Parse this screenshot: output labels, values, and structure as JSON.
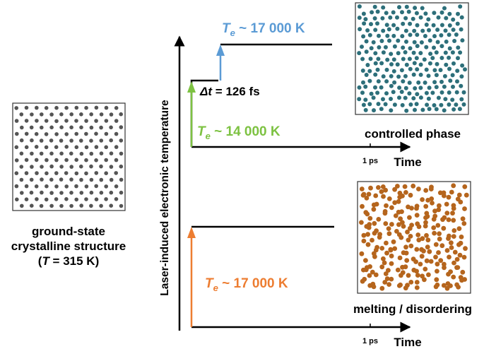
{
  "left_panel": {
    "caption_line1": "ground-state",
    "caption_line2": "crystalline structure",
    "temperature": {
      "open": "(",
      "symbol": "T",
      "rest": " = 315 K)"
    }
  },
  "y_axis": {
    "label": "Laser-induced electronic temperature"
  },
  "top_panel": {
    "pulse1": {
      "symbol": "T",
      "subscript": "e",
      "value": " ~ 14 000 K"
    },
    "pulse2": {
      "symbol": "T",
      "subscript": "e",
      "value": " ~ 17 000 K"
    },
    "delay": {
      "symbol": "Δt",
      "value": " = 126 fs"
    },
    "tick_label": "1 ps",
    "axis_label": "Time",
    "caption": "controlled phase"
  },
  "bottom_panel": {
    "pulse": {
      "symbol": "T",
      "subscript": "e",
      "value": " ~ 17 000 K"
    },
    "tick_label": "1 ps",
    "axis_label": "Time",
    "caption": "melting / disordering"
  },
  "colors": {
    "pulse_green": "#7dc242",
    "pulse_blue": "#5b9bd5",
    "pulse_orange": "#ed7d31",
    "atoms_gray": "#555555",
    "atoms_teal": "#2d6f7a",
    "atoms_orange": "#b5651d"
  }
}
